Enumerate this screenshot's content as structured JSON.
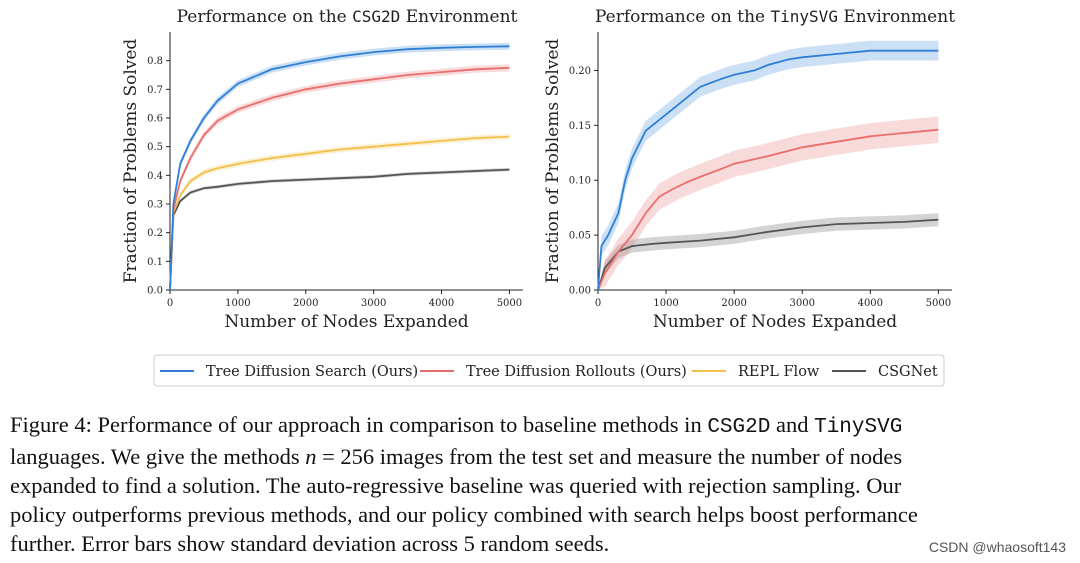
{
  "chart_data": [
    {
      "type": "line",
      "title_prefix": "Performance on the ",
      "title_env": "CSG2D",
      "title_suffix": " Environment",
      "xlabel": "Number of Nodes Expanded",
      "ylabel": "Fraction of Problems Solved",
      "xlim": [
        0,
        5200
      ],
      "ylim": [
        0,
        0.9
      ],
      "xticks": [
        0,
        1000,
        2000,
        3000,
        4000,
        5000
      ],
      "yticks": [
        0.0,
        0.1,
        0.2,
        0.3,
        0.4,
        0.5,
        0.6,
        0.7,
        0.8
      ],
      "ytick_format": 1,
      "grid": false,
      "series": [
        {
          "name": "Tree Diffusion Search (Ours)",
          "color": "#2f7fd6",
          "x": [
            0,
            50,
            150,
            300,
            500,
            700,
            1000,
            1500,
            2000,
            2500,
            3000,
            3500,
            4000,
            4500,
            5000
          ],
          "y": [
            0.0,
            0.3,
            0.44,
            0.52,
            0.6,
            0.66,
            0.72,
            0.77,
            0.795,
            0.815,
            0.83,
            0.84,
            0.845,
            0.848,
            0.85
          ],
          "band": 0.012
        },
        {
          "name": "Tree Diffusion Rollouts (Ours)",
          "color": "#e96d6d",
          "x": [
            0,
            50,
            150,
            300,
            500,
            700,
            1000,
            1500,
            2000,
            2500,
            3000,
            3500,
            4000,
            4500,
            5000
          ],
          "y": [
            0.0,
            0.28,
            0.38,
            0.46,
            0.54,
            0.59,
            0.63,
            0.67,
            0.7,
            0.72,
            0.735,
            0.75,
            0.76,
            0.77,
            0.775
          ],
          "band": 0.012
        },
        {
          "name": "REPL Flow",
          "color": "#f2c04b",
          "x": [
            0,
            50,
            150,
            300,
            500,
            700,
            1000,
            1500,
            2000,
            2500,
            3000,
            3500,
            4000,
            4500,
            5000
          ],
          "y": [
            0.0,
            0.27,
            0.33,
            0.38,
            0.41,
            0.425,
            0.44,
            0.46,
            0.475,
            0.49,
            0.5,
            0.51,
            0.52,
            0.53,
            0.535
          ],
          "band": 0.01
        },
        {
          "name": "CSGNet",
          "color": "#555555",
          "x": [
            0,
            50,
            150,
            300,
            500,
            700,
            1000,
            1500,
            2000,
            2500,
            3000,
            3500,
            4000,
            4500,
            5000
          ],
          "y": [
            0.0,
            0.26,
            0.31,
            0.34,
            0.355,
            0.36,
            0.37,
            0.38,
            0.385,
            0.39,
            0.395,
            0.405,
            0.41,
            0.415,
            0.42
          ],
          "band": 0.006
        }
      ]
    },
    {
      "type": "line",
      "title_prefix": "Performance on the ",
      "title_env": "TinySVG",
      "title_suffix": " Environment",
      "xlabel": "Number of Nodes Expanded",
      "ylabel": "Fraction of Problems Solved",
      "xlim": [
        0,
        5200
      ],
      "ylim": [
        0,
        0.235
      ],
      "xticks": [
        0,
        1000,
        2000,
        3000,
        4000,
        5000
      ],
      "yticks": [
        0.0,
        0.05,
        0.1,
        0.15,
        0.2
      ],
      "ytick_format": 2,
      "grid": false,
      "series": [
        {
          "name": "Tree Diffusion Search (Ours)",
          "color": "#2f7fd6",
          "x": [
            0,
            50,
            150,
            300,
            400,
            500,
            700,
            900,
            1100,
            1300,
            1500,
            1800,
            2000,
            2300,
            2500,
            2800,
            3000,
            3500,
            4000,
            4500,
            5000
          ],
          "y": [
            0.0,
            0.04,
            0.05,
            0.07,
            0.1,
            0.12,
            0.145,
            0.155,
            0.165,
            0.175,
            0.185,
            0.192,
            0.196,
            0.2,
            0.205,
            0.21,
            0.212,
            0.215,
            0.218,
            0.218,
            0.218
          ],
          "band": 0.009
        },
        {
          "name": "Tree Diffusion Rollouts (Ours)",
          "color": "#e96d6d",
          "x": [
            0,
            100,
            300,
            500,
            700,
            900,
            1100,
            1300,
            1500,
            1800,
            2000,
            2500,
            3000,
            3500,
            4000,
            4500,
            5000
          ],
          "y": [
            0.0,
            0.015,
            0.035,
            0.05,
            0.07,
            0.085,
            0.092,
            0.098,
            0.103,
            0.11,
            0.115,
            0.122,
            0.13,
            0.135,
            0.14,
            0.143,
            0.146
          ],
          "band": 0.012
        },
        {
          "name": "CSGNet",
          "color": "#555555",
          "x": [
            0,
            100,
            300,
            500,
            800,
            1000,
            1500,
            2000,
            2500,
            3000,
            3500,
            4000,
            4500,
            5000
          ],
          "y": [
            0.0,
            0.02,
            0.035,
            0.04,
            0.042,
            0.043,
            0.045,
            0.048,
            0.053,
            0.057,
            0.06,
            0.061,
            0.062,
            0.064
          ],
          "band": 0.006
        }
      ]
    }
  ],
  "legend": {
    "items": [
      {
        "label": "Tree Diffusion Search (Ours)",
        "color": "#2f7fd6"
      },
      {
        "label": "Tree Diffusion Rollouts (Ours)",
        "color": "#e96d6d"
      },
      {
        "label": "REPL Flow",
        "color": "#f2c04b"
      },
      {
        "label": "CSGNet",
        "color": "#555555"
      }
    ]
  },
  "caption": {
    "l1a": "Figure 4: Performance of our approach in comparison to baseline methods in ",
    "l1b": "CSG2D",
    "l1c": " and ",
    "l1d": "TinySVG",
    "l2a": "languages. We give the methods ",
    "l2b": "n",
    "l2c": " = 256 images from the test set and measure the number of nodes",
    "l3": "expanded to find a solution. The auto-regressive baseline was queried with rejection sampling. Our",
    "l4": "policy outperforms previous methods, and our policy combined with search helps boost performance",
    "l5": "further. Error bars show standard deviation across 5 random seeds."
  },
  "watermark": "CSDN @whaosoft143"
}
